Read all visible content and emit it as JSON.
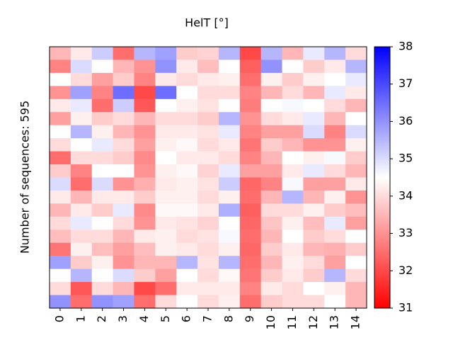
{
  "chart_data": {
    "type": "heatmap",
    "title": "HelT [°]",
    "ylabel": "Number of sequences: 595",
    "categories": [
      "0",
      "1",
      "2",
      "3",
      "4",
      "5",
      "6",
      "7",
      "8",
      "9",
      "10",
      "11",
      "12",
      "13",
      "14"
    ],
    "colormap": [
      "#ff0000",
      "#ffffff",
      "#0000ff"
    ],
    "clim": [
      31,
      38
    ],
    "cticks": [
      31,
      32,
      33,
      34,
      35,
      36,
      37,
      38
    ],
    "values": [
      [
        33.5,
        34.2,
        35.2,
        32.5,
        35.5,
        35.8,
        33.8,
        33.9,
        35.5,
        32.0,
        35.5,
        33.5,
        34.8,
        35.5,
        34.0
      ],
      [
        32.8,
        35.0,
        34.5,
        33.5,
        33.0,
        36.0,
        34.2,
        33.6,
        34.5,
        32.3,
        36.0,
        34.5,
        33.8,
        34.2,
        35.5
      ],
      [
        34.5,
        34.0,
        33.2,
        33.8,
        32.8,
        34.2,
        34.0,
        34.2,
        34.3,
        32.5,
        34.3,
        33.8,
        34.3,
        34.5,
        34.8
      ],
      [
        33.0,
        35.8,
        32.8,
        36.5,
        32.0,
        36.5,
        34.5,
        34.0,
        34.0,
        32.8,
        33.5,
        34.0,
        33.5,
        34.8,
        34.2
      ],
      [
        34.2,
        34.8,
        32.5,
        35.2,
        32.2,
        34.5,
        34.3,
        34.1,
        34.5,
        32.7,
        34.5,
        34.6,
        34.5,
        34.0,
        33.5
      ],
      [
        33.2,
        34.3,
        33.8,
        34.0,
        33.5,
        34.0,
        34.0,
        33.8,
        35.5,
        33.0,
        34.0,
        34.2,
        34.8,
        33.5,
        34.5
      ],
      [
        34.5,
        35.5,
        34.3,
        33.5,
        33.0,
        34.2,
        34.2,
        34.1,
        34.8,
        32.8,
        33.2,
        33.2,
        35.0,
        32.8,
        35.0
      ],
      [
        34.0,
        34.5,
        34.8,
        34.0,
        33.2,
        34.3,
        34.4,
        34.0,
        34.2,
        32.6,
        33.8,
        33.5,
        33.0,
        33.0,
        34.3
      ],
      [
        32.5,
        34.0,
        34.0,
        33.8,
        32.9,
        34.5,
        34.2,
        34.2,
        34.0,
        32.8,
        33.5,
        34.5,
        34.3,
        34.6,
        33.8
      ],
      [
        33.8,
        32.8,
        34.5,
        34.5,
        33.0,
        34.3,
        34.4,
        33.9,
        34.8,
        33.2,
        33.2,
        34.2,
        34.8,
        34.0,
        33.5
      ],
      [
        35.0,
        32.5,
        35.0,
        33.0,
        33.4,
        34.2,
        34.3,
        34.1,
        35.2,
        32.4,
        32.8,
        34.6,
        33.2,
        33.2,
        34.2
      ],
      [
        34.2,
        33.5,
        34.2,
        34.2,
        33.8,
        34.3,
        34.3,
        34.0,
        34.3,
        32.5,
        33.5,
        35.5,
        33.5,
        34.3,
        33.0
      ],
      [
        33.5,
        34.2,
        33.8,
        34.8,
        32.9,
        34.4,
        34.4,
        34.2,
        35.6,
        32.3,
        34.0,
        34.0,
        34.3,
        33.8,
        33.6
      ],
      [
        34.0,
        34.8,
        34.5,
        34.0,
        33.0,
        34.2,
        34.1,
        33.9,
        34.5,
        32.4,
        33.7,
        34.3,
        33.6,
        34.8,
        33.2
      ],
      [
        33.6,
        34.0,
        34.0,
        33.5,
        34.2,
        34.3,
        34.0,
        34.1,
        34.6,
        32.5,
        33.5,
        34.5,
        33.8,
        34.0,
        34.5
      ],
      [
        32.6,
        34.3,
        33.6,
        33.2,
        33.6,
        34.3,
        34.2,
        34.0,
        34.3,
        32.4,
        33.8,
        34.2,
        33.5,
        33.4,
        33.8
      ],
      [
        35.8,
        33.8,
        34.3,
        33.0,
        33.5,
        33.5,
        35.5,
        34.1,
        35.5,
        32.5,
        33.5,
        34.3,
        34.0,
        33.2,
        34.5
      ],
      [
        34.5,
        35.5,
        34.5,
        35.0,
        33.8,
        33.2,
        34.5,
        34.0,
        34.4,
        32.6,
        33.8,
        34.2,
        33.8,
        35.5,
        34.0
      ],
      [
        34.0,
        32.2,
        34.0,
        33.5,
        32.0,
        32.5,
        34.2,
        34.2,
        34.2,
        32.8,
        34.2,
        34.0,
        34.5,
        34.3,
        33.5
      ],
      [
        36.0,
        32.5,
        36.0,
        35.8,
        32.5,
        34.0,
        34.5,
        34.0,
        34.3,
        32.5,
        33.8,
        34.0,
        34.0,
        34.5,
        33.5
      ]
    ]
  }
}
